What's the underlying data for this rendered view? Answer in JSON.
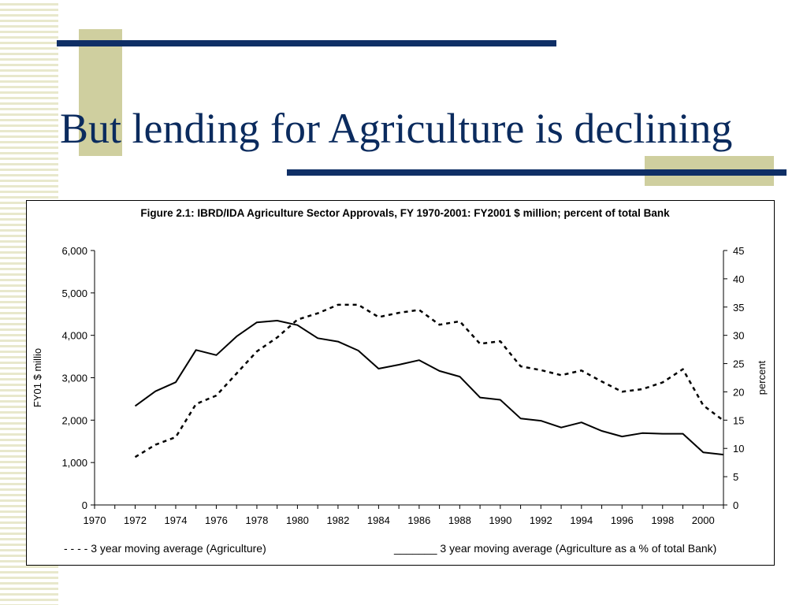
{
  "slide": {
    "title": "But lending for Agriculture is declining"
  },
  "colors": {
    "title": "#0b2b5e",
    "accent_line": "#0f2f66",
    "accent_block": "#cfcf9f",
    "stripe": "#e8e8cc",
    "series": "#000000"
  },
  "chart_data": {
    "type": "line",
    "title": "Figure 2.1: IBRD/IDA Agriculture Sector Approvals, FY 1970-2001: FY2001 $ million; percent of total Bank",
    "ylabel": "FY01 $ millio",
    "y2label": "percent",
    "xlabel": "",
    "xlim": [
      1970,
      2001
    ],
    "ylim": [
      0,
      6000
    ],
    "y2lim": [
      0,
      45
    ],
    "x_ticks": [
      1970,
      1972,
      1974,
      1976,
      1978,
      1980,
      1982,
      1984,
      1986,
      1988,
      1990,
      1992,
      1994,
      1996,
      1998,
      2000
    ],
    "x_tick_labels": [
      "1970",
      "1972",
      "1974",
      "1976",
      "1978",
      "1980",
      "1982",
      "1984",
      "1986",
      "1988",
      "1990",
      "1992",
      "1994",
      "1996",
      "1998",
      "2000"
    ],
    "y_ticks": [
      0,
      1000,
      2000,
      3000,
      4000,
      5000,
      6000
    ],
    "y_tick_labels": [
      "0",
      "1,000",
      "2,000",
      "3,000",
      "4,000",
      "5,000",
      "6,000"
    ],
    "y2_ticks": [
      0,
      5,
      10,
      15,
      20,
      25,
      30,
      35,
      40,
      45
    ],
    "y2_tick_labels": [
      "0",
      "5",
      "10",
      "15",
      "20",
      "25",
      "30",
      "35",
      "40",
      "45"
    ],
    "grid": false,
    "legend_position": "bottom",
    "series": [
      {
        "name": "3 year moving average (Agriculture)",
        "legend_text": "- - - - 3 year moving average (Agriculture)",
        "axis": "left",
        "style": "dashed",
        "x": [
          1972,
          1973,
          1974,
          1975,
          1976,
          1977,
          1978,
          1979,
          1980,
          1981,
          1982,
          1983,
          1984,
          1985,
          1986,
          1987,
          1988,
          1989,
          1990,
          1991,
          1992,
          1993,
          1994,
          1995,
          1996,
          1997,
          1998,
          1999,
          2000,
          2001
        ],
        "values": [
          1130,
          1420,
          1600,
          2380,
          2580,
          3100,
          3620,
          3950,
          4370,
          4520,
          4720,
          4720,
          4430,
          4530,
          4600,
          4250,
          4330,
          3800,
          3860,
          3270,
          3180,
          3060,
          3170,
          2910,
          2670,
          2730,
          2890,
          3200,
          2350,
          1990
        ]
      },
      {
        "name": "3 year moving average (Agriculture as a % of total Bank)",
        "legend_text": "_______ 3 year moving average (Agriculture as a % of total Bank)",
        "axis": "right",
        "style": "solid",
        "x": [
          1972,
          1973,
          1974,
          1975,
          1976,
          1977,
          1978,
          1979,
          1980,
          1981,
          1982,
          1983,
          1984,
          1985,
          1986,
          1987,
          1988,
          1989,
          1990,
          1991,
          1992,
          1993,
          1994,
          1995,
          1996,
          1997,
          1998,
          1999,
          2000,
          2001
        ],
        "values": [
          17.5,
          20.1,
          21.7,
          27.4,
          26.5,
          29.8,
          32.3,
          32.6,
          31.8,
          29.5,
          28.9,
          27.3,
          24.1,
          24.8,
          25.6,
          23.7,
          22.7,
          19.0,
          18.6,
          15.3,
          14.9,
          13.7,
          14.6,
          13.1,
          12.1,
          12.7,
          12.6,
          12.6,
          9.3,
          8.9
        ]
      }
    ]
  }
}
